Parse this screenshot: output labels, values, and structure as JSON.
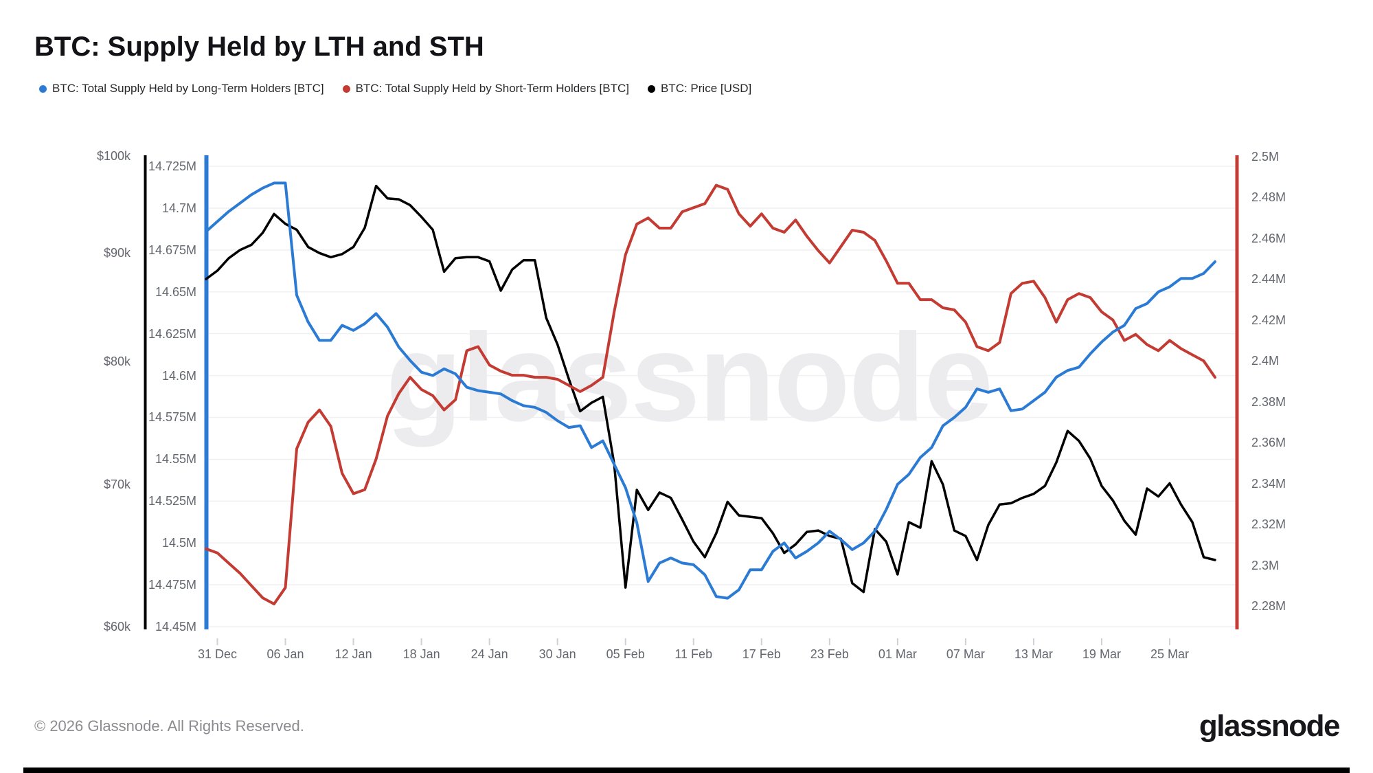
{
  "title": "BTC: Supply Held by LTH and STH",
  "watermark": {
    "text": "glassnode"
  },
  "footer": {
    "copyright": "© 2026 Glassnode. All Rights Reserved.",
    "logo_text": "glassnode"
  },
  "colors": {
    "lth_blue": "#2b7bd5",
    "sth_red": "#c33b32",
    "price_black": "#000000",
    "grid": "#f1f1f4",
    "x_tick": "#d0d0d6",
    "watermark": "#ececef"
  },
  "chart_data": {
    "type": "line",
    "title": "BTC: Supply Held by LTH and STH",
    "grid": "horizontal-only",
    "legend_position": "top-left",
    "x": [
      "30 Dec",
      "31 Dec",
      "01 Jan",
      "02 Jan",
      "03 Jan",
      "04 Jan",
      "05 Jan",
      "06 Jan",
      "07 Jan",
      "08 Jan",
      "09 Jan",
      "10 Jan",
      "11 Jan",
      "12 Jan",
      "13 Jan",
      "14 Jan",
      "15 Jan",
      "16 Jan",
      "17 Jan",
      "18 Jan",
      "19 Jan",
      "20 Jan",
      "21 Jan",
      "22 Jan",
      "23 Jan",
      "24 Jan",
      "25 Jan",
      "26 Jan",
      "27 Jan",
      "28 Jan",
      "29 Jan",
      "30 Jan",
      "31 Jan",
      "01 Feb",
      "02 Feb",
      "03 Feb",
      "04 Feb",
      "05 Feb",
      "06 Feb",
      "07 Feb",
      "08 Feb",
      "09 Feb",
      "10 Feb",
      "11 Feb",
      "12 Feb",
      "13 Feb",
      "14 Feb",
      "15 Feb",
      "16 Feb",
      "17 Feb",
      "18 Feb",
      "19 Feb",
      "20 Feb",
      "21 Feb",
      "22 Feb",
      "23 Feb",
      "24 Feb",
      "25 Feb",
      "26 Feb",
      "27 Feb",
      "28 Feb",
      "01 Mar",
      "02 Mar",
      "03 Mar",
      "04 Mar",
      "05 Mar",
      "06 Mar",
      "07 Mar",
      "08 Mar",
      "09 Mar",
      "10 Mar",
      "11 Mar",
      "12 Mar",
      "13 Mar",
      "14 Mar",
      "15 Mar",
      "16 Mar",
      "17 Mar",
      "18 Mar",
      "19 Mar",
      "20 Mar",
      "21 Mar",
      "22 Mar",
      "23 Mar",
      "24 Mar",
      "25 Mar",
      "26 Mar",
      "27 Mar",
      "28 Mar",
      "29 Mar"
    ],
    "x_tick_labels": [
      "31 Dec",
      "06 Jan",
      "12 Jan",
      "18 Jan",
      "24 Jan",
      "30 Jan",
      "05 Feb",
      "11 Feb",
      "17 Feb",
      "23 Feb",
      "01 Mar",
      "07 Mar",
      "13 Mar",
      "19 Mar",
      "25 Mar"
    ],
    "axes": {
      "lth": {
        "side": "left-inner",
        "unit": "M BTC",
        "ylim": [
          14.45,
          14.725
        ],
        "scale": "linear",
        "ticks": [
          14.725,
          14.7,
          14.675,
          14.65,
          14.625,
          14.6,
          14.575,
          14.55,
          14.525,
          14.5,
          14.475,
          14.45
        ],
        "tick_labels": [
          "14.725M",
          "14.7M",
          "14.675M",
          "14.65M",
          "14.625M",
          "14.6M",
          "14.575M",
          "14.55M",
          "14.525M",
          "14.5M",
          "14.475M",
          "14.45M"
        ]
      },
      "price": {
        "side": "left-outer",
        "unit": "USD",
        "ylim": [
          60000,
          100000
        ],
        "scale": "log",
        "ticks": [
          100000,
          90000,
          80000,
          70000,
          60000
        ],
        "tick_labels": [
          "$100k",
          "$90k",
          "$80k",
          "$70k",
          "$60k"
        ]
      },
      "sth": {
        "side": "right",
        "unit": "M BTC",
        "ylim": [
          2.28,
          2.5
        ],
        "scale": "linear",
        "ticks": [
          2.5,
          2.48,
          2.46,
          2.44,
          2.42,
          2.4,
          2.38,
          2.36,
          2.34,
          2.32,
          2.3,
          2.28
        ],
        "tick_labels": [
          "2.5M",
          "2.48M",
          "2.46M",
          "2.44M",
          "2.42M",
          "2.4M",
          "2.38M",
          "2.36M",
          "2.34M",
          "2.32M",
          "2.3M",
          "2.28M"
        ]
      }
    },
    "series": [
      {
        "name": "BTC: Total Supply Held by Long-Term Holders [BTC]",
        "color": "#2b7bd5",
        "axis": "lth",
        "unit": "M BTC",
        "values": [
          14.686,
          14.692,
          14.698,
          14.703,
          14.708,
          14.712,
          14.715,
          14.715,
          14.648,
          14.632,
          14.621,
          14.621,
          14.63,
          14.627,
          14.631,
          14.637,
          14.629,
          14.617,
          14.609,
          14.602,
          14.6,
          14.604,
          14.601,
          14.593,
          14.591,
          14.59,
          14.589,
          14.585,
          14.582,
          14.581,
          14.578,
          14.573,
          14.569,
          14.57,
          14.557,
          14.561,
          14.547,
          14.533,
          14.512,
          14.477,
          14.488,
          14.491,
          14.488,
          14.487,
          14.481,
          14.468,
          14.467,
          14.472,
          14.484,
          14.484,
          14.495,
          14.5,
          14.491,
          14.495,
          14.5,
          14.507,
          14.502,
          14.496,
          14.5,
          14.507,
          14.52,
          14.535,
          14.541,
          14.551,
          14.557,
          14.57,
          14.575,
          14.581,
          14.592,
          14.59,
          14.592,
          14.579,
          14.58,
          14.585,
          14.59,
          14.599,
          14.603,
          14.605,
          14.613,
          14.62,
          14.626,
          14.63,
          14.64,
          14.643,
          14.65,
          14.653,
          14.658,
          14.658,
          14.661,
          14.668
        ]
      },
      {
        "name": "BTC: Total Supply Held by Short-Term Holders [BTC]",
        "color": "#c33b32",
        "axis": "sth",
        "unit": "M BTC",
        "values": [
          2.308,
          2.306,
          2.301,
          2.296,
          2.29,
          2.284,
          2.281,
          2.289,
          2.357,
          2.37,
          2.376,
          2.368,
          2.345,
          2.335,
          2.337,
          2.352,
          2.373,
          2.384,
          2.392,
          2.386,
          2.383,
          2.376,
          2.381,
          2.405,
          2.407,
          2.398,
          2.395,
          2.393,
          2.393,
          2.392,
          2.392,
          2.391,
          2.388,
          2.385,
          2.388,
          2.392,
          2.424,
          2.452,
          2.467,
          2.47,
          2.465,
          2.465,
          2.473,
          2.475,
          2.477,
          2.486,
          2.484,
          2.472,
          2.466,
          2.472,
          2.465,
          2.463,
          2.469,
          2.461,
          2.454,
          2.448,
          2.456,
          2.464,
          2.463,
          2.459,
          2.449,
          2.438,
          2.438,
          2.43,
          2.43,
          2.426,
          2.425,
          2.419,
          2.407,
          2.405,
          2.409,
          2.433,
          2.438,
          2.439,
          2.431,
          2.419,
          2.43,
          2.433,
          2.431,
          2.424,
          2.42,
          2.41,
          2.413,
          2.408,
          2.405,
          2.41,
          2.406,
          2.403,
          2.4,
          2.392
        ]
      },
      {
        "name": "BTC: Price [USD]",
        "color": "#000000",
        "axis": "price",
        "unit": "USD",
        "values": [
          87500,
          88300,
          89500,
          90300,
          90800,
          92000,
          93900,
          92900,
          92300,
          90600,
          90000,
          89600,
          89900,
          90600,
          92500,
          96800,
          95500,
          95400,
          94800,
          93600,
          92300,
          88200,
          89500,
          89600,
          89600,
          89200,
          86400,
          88400,
          89300,
          89300,
          83900,
          81500,
          78500,
          75800,
          76500,
          77000,
          71600,
          62600,
          69600,
          68100,
          69400,
          69000,
          67400,
          65800,
          64700,
          66400,
          68700,
          67700,
          67600,
          67500,
          66400,
          65000,
          65600,
          66500,
          66600,
          66200,
          66000,
          62900,
          62300,
          66700,
          65800,
          63500,
          67200,
          66800,
          71800,
          70000,
          66600,
          66200,
          64500,
          67000,
          68500,
          68600,
          69000,
          69300,
          69900,
          71700,
          74200,
          73400,
          72000,
          69900,
          68800,
          67300,
          66300,
          69700,
          69100,
          70100,
          68500,
          67200,
          64700,
          64500
        ]
      }
    ]
  }
}
